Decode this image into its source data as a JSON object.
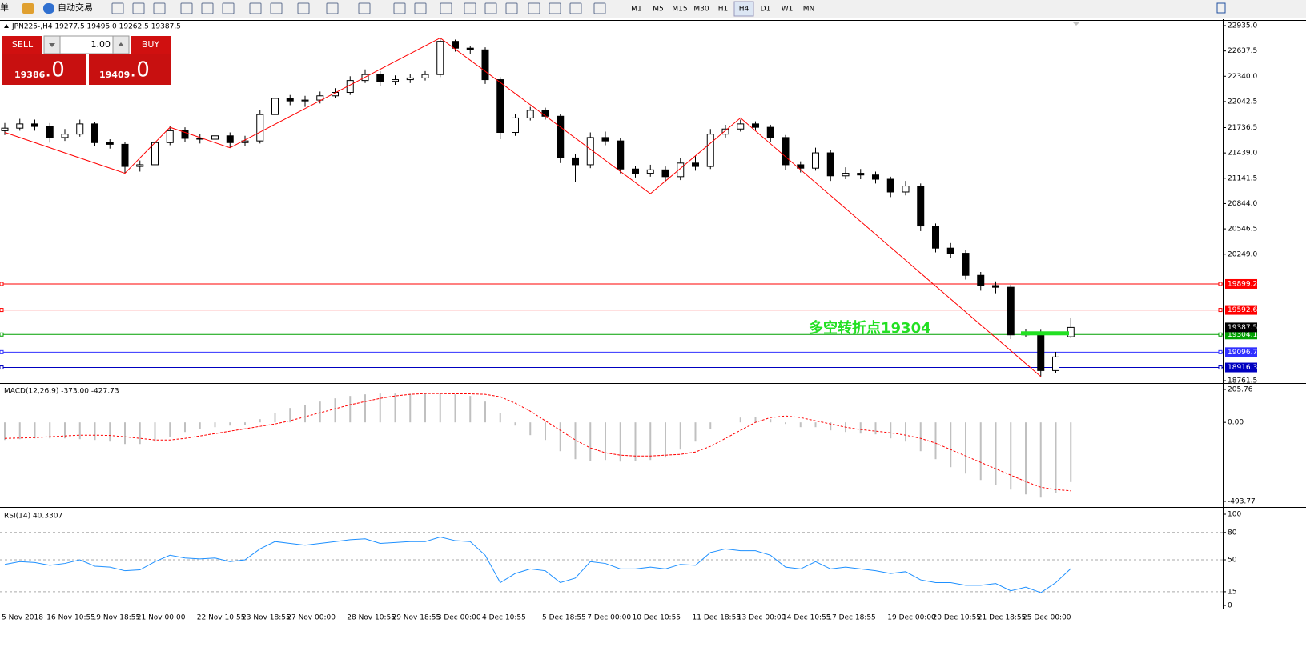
{
  "toolbar": {
    "order": "单",
    "auto_trade": "自动交易",
    "timeframes": [
      "M1",
      "M5",
      "M15",
      "M30",
      "H1",
      "H4",
      "D1",
      "W1",
      "MN"
    ]
  },
  "trade_panel": {
    "sell": "SELL",
    "buy": "BUY",
    "volume": "1.00",
    "sell_price": "19386",
    "sell_decimal": ".0",
    "buy_price": "19409",
    "buy_decimal": ".0"
  },
  "chart_data": [
    {
      "type": "candlestick",
      "header": "JPN225-,H4  19277.5 19495.0 19262.5 19387.5",
      "categories": [
        "5 Nov 2018",
        null,
        null,
        "16 Nov 10:55",
        null,
        null,
        "19 Nov 18:55",
        null,
        null,
        "21 Nov 00:00",
        null,
        null,
        null,
        "22 Nov 10:55",
        null,
        null,
        "23 Nov 18:55",
        null,
        null,
        "27 Nov 00:00",
        null,
        null,
        null,
        "28 Nov 10:55",
        null,
        null,
        "29 Nov 18:55",
        null,
        null,
        "3 Dec 00:00",
        null,
        null,
        "4 Dec 10:55",
        null,
        null,
        null,
        "5 Dec 18:55",
        null,
        null,
        "7 Dec 00:00",
        null,
        null,
        "10 Dec 10:55",
        null,
        null,
        null,
        "11 Dec 18:55",
        null,
        null,
        "13 Dec 00:00",
        null,
        null,
        "14 Dec 10:55",
        null,
        null,
        "17 Dec 18:55",
        null,
        null,
        null,
        "19 Dec 00:00",
        null,
        null,
        "20 Dec 10:55",
        null,
        null,
        "21 Dec 18:55",
        null,
        null,
        "25 Dec 00:00",
        null,
        null,
        null
      ],
      "open": [
        21700,
        21730,
        21780,
        21750,
        21620,
        21660,
        21780,
        21560,
        21540,
        21280,
        21300,
        21560,
        21700,
        21610,
        21600,
        21640,
        21560,
        21580,
        21890,
        22080,
        22050,
        22060,
        22110,
        22150,
        22290,
        22360,
        22280,
        22300,
        22320,
        22360,
        22750,
        22670,
        22650,
        22300,
        21680,
        21850,
        21940,
        21870,
        21380,
        21300,
        21620,
        21580,
        21250,
        21200,
        21240,
        21160,
        21320,
        21280,
        21660,
        21720,
        21780,
        21740,
        21620,
        21300,
        21260,
        21440,
        21170,
        21200,
        21180,
        21130,
        20980,
        21050,
        20580,
        20320,
        20260,
        20000,
        19880,
        19860,
        19300,
        19320,
        18880,
        19277.5
      ],
      "high": [
        21790,
        21840,
        21830,
        21790,
        21720,
        21830,
        21800,
        21600,
        21570,
        21350,
        21600,
        21760,
        21740,
        21660,
        21700,
        21680,
        21640,
        21940,
        22130,
        22120,
        22110,
        22160,
        22200,
        22340,
        22420,
        22400,
        22350,
        22370,
        22400,
        22790,
        22770,
        22700,
        22680,
        22330,
        21900,
        21980,
        21970,
        21900,
        21430,
        21680,
        21690,
        21610,
        21290,
        21300,
        21280,
        21380,
        21400,
        21720,
        21770,
        21830,
        21810,
        21770,
        21650,
        21340,
        21500,
        21470,
        21270,
        21250,
        21220,
        21160,
        21110,
        21080,
        20610,
        20380,
        20300,
        20040,
        19930,
        19890,
        19370,
        19360,
        19100,
        19495
      ],
      "low": [
        21650,
        21700,
        21700,
        21560,
        21580,
        21630,
        21520,
        21490,
        21200,
        21220,
        21270,
        21530,
        21570,
        21550,
        21570,
        21500,
        21520,
        21550,
        21860,
        22000,
        21980,
        22020,
        22080,
        22120,
        22260,
        22230,
        22240,
        22260,
        22290,
        22330,
        22630,
        22600,
        22250,
        21600,
        21640,
        21820,
        21830,
        21320,
        21100,
        21260,
        21530,
        21200,
        21150,
        21160,
        21100,
        21120,
        21230,
        21250,
        21620,
        21690,
        21700,
        21570,
        21240,
        21210,
        21230,
        21110,
        21130,
        21130,
        21080,
        20920,
        20940,
        20520,
        20270,
        20200,
        19950,
        19820,
        19790,
        19250,
        19270,
        18810,
        18850,
        19262.5
      ],
      "close": [
        21730,
        21780,
        21750,
        21620,
        21660,
        21780,
        21560,
        21540,
        21280,
        21300,
        21560,
        21700,
        21610,
        21600,
        21640,
        21560,
        21580,
        21890,
        22080,
        22050,
        22060,
        22110,
        22150,
        22290,
        22360,
        22280,
        22300,
        22320,
        22360,
        22750,
        22670,
        22650,
        22300,
        21680,
        21850,
        21940,
        21870,
        21380,
        21300,
        21620,
        21580,
        21250,
        21200,
        21240,
        21160,
        21320,
        21280,
        21660,
        21720,
        21780,
        21740,
        21620,
        21300,
        21260,
        21440,
        21170,
        21200,
        21180,
        21130,
        20980,
        21050,
        20580,
        20320,
        20260,
        20000,
        19880,
        19860,
        19300,
        19320,
        18880,
        19040,
        19387.5
      ],
      "up_color": "#ffffff",
      "down_color": "#000000",
      "zigzag": {
        "color": "#ff0000",
        "x": [
          0,
          8,
          11,
          15,
          29,
          43,
          49,
          69
        ],
        "values": [
          21680,
          21200,
          21740,
          21500,
          22790,
          20960,
          21850,
          18810
        ]
      },
      "levels": [
        {
          "value": 19899.2,
          "color": "#ff0000"
        },
        {
          "value": 19592.6,
          "color": "#ff0000"
        },
        {
          "value": 19304.1,
          "color": "#00a000"
        },
        {
          "value": 19096.7,
          "color": "#3030ff"
        },
        {
          "value": 18916.3,
          "color": "#0000c0"
        }
      ],
      "annotation": "多空转折点19304",
      "annotation_color": "#22e022",
      "ylim": [
        18761.5,
        22935
      ],
      "yticks": [
        {
          "value": 22935,
          "label": "22935.0"
        },
        22637.5,
        {
          "value": 22340,
          "label": "22340.0"
        },
        22042.5,
        21736.5,
        {
          "value": 21439,
          "label": "21439.0"
        },
        21141.5,
        {
          "value": 20844,
          "label": "20844.0"
        },
        20546.5,
        {
          "value": 20249,
          "label": "20249.0"
        },
        18761.5
      ]
    },
    {
      "type": "macd",
      "label": "MACD(12,26,9) -373.00 -427.73",
      "histogram": {
        "color": "#c0c0c0",
        "values": [
          -110,
          -105,
          -100,
          -100,
          -100,
          -105,
          -110,
          -120,
          -135,
          -135,
          -120,
          -90,
          -60,
          -40,
          -30,
          -20,
          -15,
          20,
          60,
          90,
          110,
          130,
          150,
          165,
          175,
          180,
          180,
          178,
          180,
          185,
          175,
          165,
          130,
          60,
          -20,
          -80,
          -110,
          -180,
          -230,
          -240,
          -235,
          -245,
          -240,
          -235,
          -220,
          -170,
          -120,
          -40,
          0,
          30,
          35,
          20,
          -10,
          -30,
          -30,
          -50,
          -60,
          -70,
          -75,
          -100,
          -120,
          -180,
          -230,
          -280,
          -320,
          -360,
          -390,
          -420,
          -450,
          -470,
          -440,
          -373
        ]
      },
      "signal": {
        "color": "#ff0000",
        "values": [
          -100,
          -98,
          -95,
          -90,
          -85,
          -80,
          -80,
          -82,
          -90,
          -100,
          -110,
          -110,
          -100,
          -85,
          -70,
          -55,
          -40,
          -25,
          -10,
          10,
          35,
          60,
          85,
          110,
          130,
          150,
          165,
          175,
          180,
          180,
          178,
          178,
          175,
          160,
          120,
          70,
          10,
          -50,
          -110,
          -160,
          -190,
          -205,
          -210,
          -210,
          -205,
          -200,
          -185,
          -150,
          -100,
          -50,
          0,
          30,
          40,
          30,
          10,
          -10,
          -30,
          -45,
          -55,
          -65,
          -80,
          -100,
          -130,
          -170,
          -210,
          -250,
          -290,
          -330,
          -370,
          -405,
          -420,
          -427.73
        ]
      },
      "ylim": [
        -493.77,
        205.76
      ],
      "yticks": [
        205.76,
        {
          "value": 0,
          "label": "0.00"
        },
        -493.77
      ]
    },
    {
      "type": "line",
      "label": "RSI(14) 40.3307",
      "color": "#1e90ff",
      "values": [
        45,
        48,
        47,
        44,
        46,
        50,
        43,
        42,
        38,
        39,
        48,
        55,
        52,
        51,
        52,
        48,
        50,
        62,
        70,
        68,
        66,
        68,
        70,
        72,
        73,
        68,
        69,
        70,
        70,
        75,
        71,
        70,
        55,
        25,
        35,
        40,
        38,
        25,
        30,
        48,
        46,
        40,
        40,
        42,
        40,
        45,
        44,
        58,
        62,
        60,
        60,
        55,
        42,
        40,
        48,
        40,
        42,
        40,
        38,
        35,
        37,
        28,
        25,
        25,
        22,
        22,
        24,
        16,
        20,
        14,
        25,
        40.3307
      ],
      "ylim": [
        0,
        100
      ],
      "yticks": [
        0,
        15,
        50,
        80,
        100
      ],
      "grid": "dashed"
    }
  ]
}
